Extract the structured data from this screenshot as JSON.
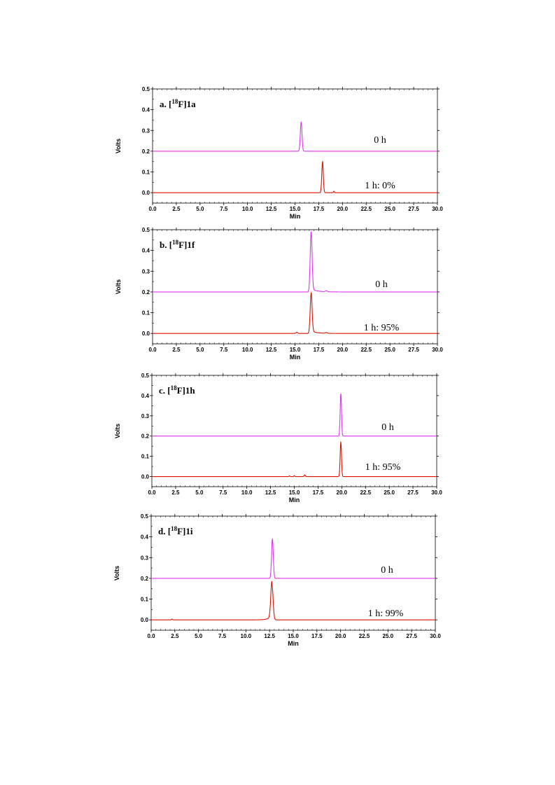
{
  "chart_data": [
    {
      "type": "line",
      "panel_label": {
        "prefix": "a. [",
        "sup": "18",
        "suffix": "F]1a"
      },
      "xlabel": "Min",
      "ylabel": "Volts",
      "xlim": [
        0,
        30
      ],
      "ylim": [
        -0.05,
        0.5
      ],
      "xticks": [
        "0.0",
        "2.5",
        "5.0",
        "7.5",
        "10.0",
        "12.5",
        "15.0",
        "17.5",
        "20.0",
        "22.5",
        "25.0",
        "27.5",
        "30.0"
      ],
      "yticks": [
        "0.0",
        "0.1",
        "0.2",
        "0.3",
        "0.4",
        "0.5"
      ],
      "series": [
        {
          "label": "0 h",
          "color": "#dd33ee",
          "baseline": 0.2,
          "peaks": [
            {
              "t": 15.65,
              "h": 0.14,
              "w": 0.09
            }
          ]
        },
        {
          "label": "1 h: 0%",
          "color": "#dd1100",
          "baseline": 0.0,
          "peaks": [
            {
              "t": 17.9,
              "h": 0.15,
              "w": 0.08
            },
            {
              "t": 19.1,
              "h": 0.007,
              "w": 0.05
            }
          ]
        }
      ]
    },
    {
      "type": "line",
      "panel_label": {
        "prefix": "b. [",
        "sup": "18",
        "suffix": "F]1f"
      },
      "xlabel": "Min",
      "ylabel": "Volts",
      "xlim": [
        0,
        30
      ],
      "ylim": [
        -0.05,
        0.5
      ],
      "xticks": [
        "0.0",
        "2.5",
        "5.0",
        "7.5",
        "10.0",
        "12.5",
        "15.0",
        "17.5",
        "20.0",
        "22.5",
        "25.0",
        "27.5",
        "30.0"
      ],
      "yticks": [
        "0.0",
        "0.1",
        "0.2",
        "0.3",
        "0.4",
        "0.5"
      ],
      "series": [
        {
          "label": "0 h",
          "color": "#dd33ee",
          "baseline": 0.2,
          "peaks": [
            {
              "t": 16.7,
              "h": 0.29,
              "w": 0.1,
              "tail": 0.015
            },
            {
              "t": 18.3,
              "h": 0.005,
              "w": 0.1
            }
          ]
        },
        {
          "label": "1 h: 95%",
          "color": "#dd1100",
          "baseline": 0.0,
          "peaks": [
            {
              "t": 15.2,
              "h": 0.006,
              "w": 0.08
            },
            {
              "t": 16.7,
              "h": 0.195,
              "w": 0.1,
              "tail": 0.012
            },
            {
              "t": 18.3,
              "h": 0.004,
              "w": 0.1
            }
          ]
        }
      ]
    },
    {
      "type": "line",
      "panel_label": {
        "prefix": "c. [",
        "sup": "18",
        "suffix": "F]1h"
      },
      "xlabel": "Min",
      "ylabel": "Volts",
      "xlim": [
        0,
        30
      ],
      "ylim": [
        -0.05,
        0.5
      ],
      "xticks": [
        "0.0",
        "2.5",
        "5.0",
        "7.5",
        "10.0",
        "12.5",
        "15.0",
        "17.5",
        "20.0",
        "22.5",
        "25.0",
        "27.5",
        "30.0"
      ],
      "yticks": [
        "0.0",
        "0.1",
        "0.2",
        "0.3",
        "0.4",
        "0.5"
      ],
      "series": [
        {
          "label": "0 h",
          "color": "#dd33ee",
          "baseline": 0.2,
          "peaks": [
            {
              "t": 19.9,
              "h": 0.21,
              "w": 0.07
            }
          ]
        },
        {
          "label": "1 h: 95%",
          "color": "#dd1100",
          "baseline": 0.0,
          "peaks": [
            {
              "t": 14.5,
              "h": 0.003,
              "w": 0.05
            },
            {
              "t": 15.0,
              "h": 0.004,
              "w": 0.05
            },
            {
              "t": 16.1,
              "h": 0.008,
              "w": 0.06
            },
            {
              "t": 19.9,
              "h": 0.17,
              "w": 0.07
            }
          ]
        }
      ]
    },
    {
      "type": "line",
      "panel_label": {
        "prefix": "d. [",
        "sup": "18",
        "suffix": "F]1i"
      },
      "xlabel": "Min",
      "ylabel": "Volts",
      "xlim": [
        0,
        30
      ],
      "ylim": [
        -0.05,
        0.5
      ],
      "xticks": [
        "0.0",
        "2.5",
        "5.0",
        "7.5",
        "10.0",
        "12.5",
        "15.0",
        "17.5",
        "20.0",
        "22.5",
        "25.0",
        "27.5",
        "30.0"
      ],
      "yticks": [
        "0.0",
        "0.1",
        "0.2",
        "0.3",
        "0.4",
        "0.5"
      ],
      "series": [
        {
          "label": "0 h",
          "color": "#dd33ee",
          "baseline": 0.2,
          "peaks": [
            {
              "t": 12.8,
              "h": 0.19,
              "w": 0.09
            }
          ]
        },
        {
          "label": "1 h: 99%",
          "color": "#dd1100",
          "baseline": 0.0,
          "peaks": [
            {
              "t": 2.2,
              "h": 0.004,
              "w": 0.05
            },
            {
              "t": 12.75,
              "h": 0.17,
              "w": 0.12,
              "front": 0.02
            }
          ]
        }
      ]
    }
  ]
}
